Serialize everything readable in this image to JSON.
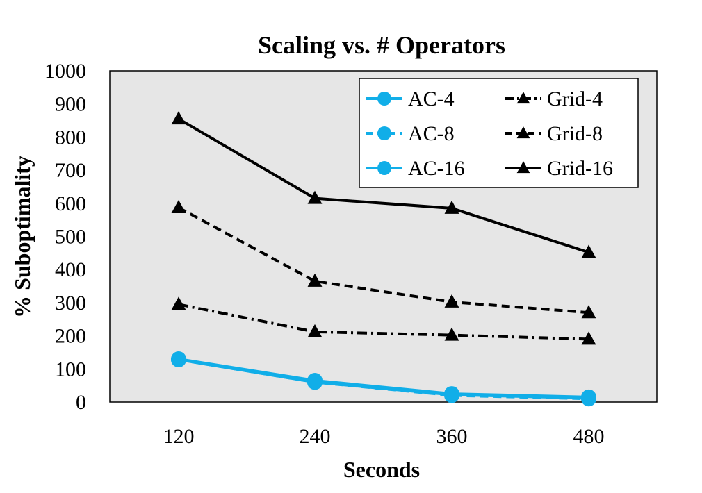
{
  "chart_data": {
    "type": "line",
    "title": "Scaling vs. # Operators",
    "xlabel": "Seconds",
    "ylabel": "% Suboptimality",
    "categories": [
      "120",
      "240",
      "360",
      "480"
    ],
    "y_ticks": [
      "0",
      "100",
      "200",
      "300",
      "400",
      "500",
      "600",
      "700",
      "800",
      "900",
      "1000"
    ],
    "ylim": [
      0,
      1000
    ],
    "grid": false,
    "legend_position": "top-right",
    "plot_background": "#e6e6e6",
    "series": [
      {
        "name": "AC-4",
        "values": [
          130,
          65,
          25,
          15
        ],
        "color": "#11aee8",
        "marker": "circle",
        "dash": "solid"
      },
      {
        "name": "AC-8",
        "values": [
          128,
          60,
          20,
          10
        ],
        "color": "#11aee8",
        "marker": "circle",
        "dash": "dashed"
      },
      {
        "name": "AC-16",
        "values": [
          128,
          60,
          22,
          12
        ],
        "color": "#11aee8",
        "marker": "circle",
        "dash": "solid"
      },
      {
        "name": "Grid-4",
        "values": [
          295,
          212,
          202,
          190
        ],
        "color": "#000000",
        "marker": "triangle",
        "dash": "dashdot"
      },
      {
        "name": "Grid-8",
        "values": [
          587,
          365,
          302,
          270
        ],
        "color": "#000000",
        "marker": "triangle",
        "dash": "dashed"
      },
      {
        "name": "Grid-16",
        "values": [
          855,
          615,
          585,
          452
        ],
        "color": "#000000",
        "marker": "triangle",
        "dash": "solid"
      }
    ]
  }
}
